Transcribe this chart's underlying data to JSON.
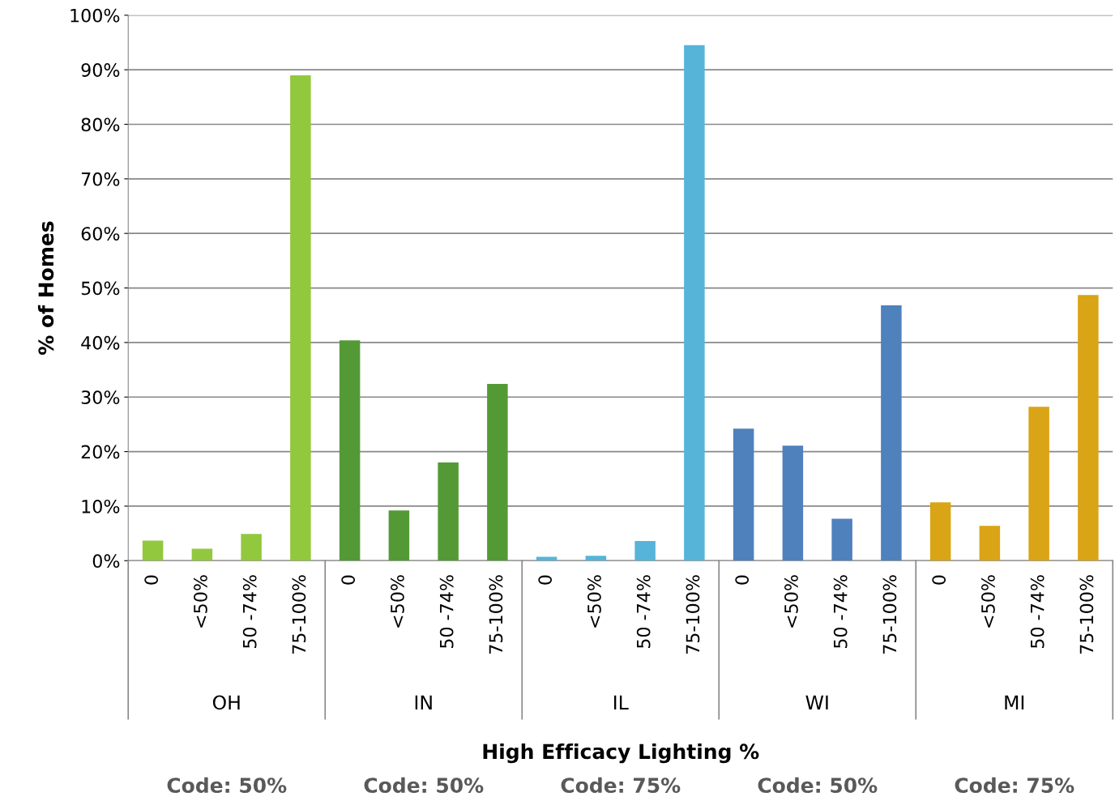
{
  "chart_data": {
    "type": "bar",
    "ylabel": "% of Homes",
    "xlabel": "High Efficacy Lighting %",
    "categories": [
      "0",
      "<50%",
      "50 -74%",
      "75-100%",
      "0",
      "<50%",
      "50 -74%",
      "75-100%",
      "0",
      "<50%",
      "50 -74%",
      "75-100%",
      "0",
      "<50%",
      "50 -74%",
      "75-100%",
      "0",
      "<50%",
      "50 -74%",
      "75-100%"
    ],
    "values": [
      3.7,
      2.2,
      4.9,
      89.0,
      40.4,
      9.2,
      18.0,
      32.4,
      0.7,
      0.9,
      3.6,
      94.5,
      24.2,
      21.1,
      7.7,
      46.8,
      10.7,
      6.4,
      28.2,
      48.7
    ],
    "colors": [
      "#92c83e",
      "#92c83e",
      "#92c83e",
      "#92c83e",
      "#539a36",
      "#539a36",
      "#539a36",
      "#539a36",
      "#56b4d9",
      "#56b4d9",
      "#56b4d9",
      "#56b4d9",
      "#4f81bd",
      "#4f81bd",
      "#4f81bd",
      "#4f81bd",
      "#d9a415",
      "#d9a415",
      "#d9a415",
      "#d9a415"
    ],
    "ylim": [
      0,
      100
    ],
    "yticks": [
      {
        "value": 0,
        "label": "0%"
      },
      {
        "value": 10,
        "label": "10%"
      },
      {
        "value": 20,
        "label": "20%"
      },
      {
        "value": 30,
        "label": "30%"
      },
      {
        "value": 40,
        "label": "40%"
      },
      {
        "value": 50,
        "label": "50%"
      },
      {
        "value": 60,
        "label": "60%"
      },
      {
        "value": 70,
        "label": "70%"
      },
      {
        "value": 80,
        "label": "80%"
      },
      {
        "value": 90,
        "label": "90%"
      },
      {
        "value": 100,
        "label": "100%"
      }
    ],
    "grid": "y",
    "annotations": [
      "OH",
      "IN",
      "IL",
      "WI",
      "MI",
      "Code: 50%",
      "Code: 50%",
      "Code: 75%",
      "Code: 50%",
      "Code: 75%"
    ]
  }
}
